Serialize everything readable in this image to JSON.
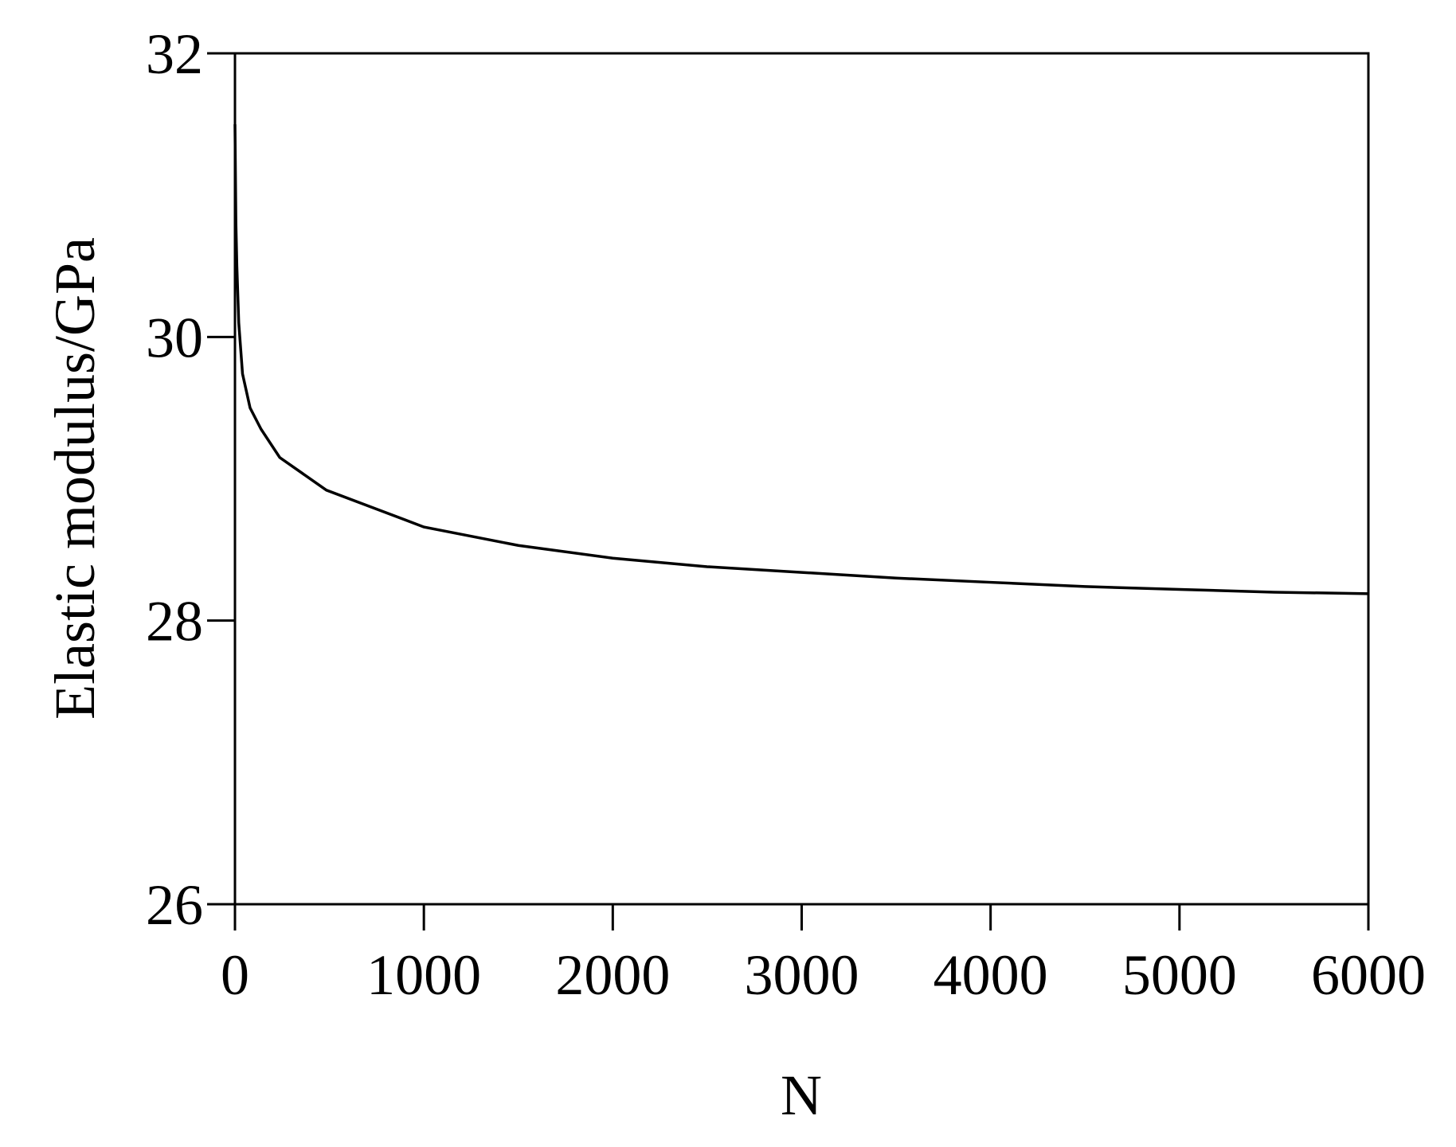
{
  "chart_data": {
    "type": "line",
    "xlabel": "N",
    "ylabel": "Elastic modulus/GPa",
    "x": [
      0,
      5,
      10,
      20,
      40,
      80,
      138,
      237,
      484,
      1000,
      1500,
      2000,
      2500,
      3000,
      3500,
      4000,
      4500,
      5000,
      5500,
      6000
    ],
    "series": [
      {
        "color": "#000000",
        "values": [
          31.5,
          30.8,
          30.5,
          30.1,
          29.74,
          29.5,
          29.35,
          29.15,
          28.92,
          28.66,
          28.53,
          28.44,
          28.38,
          28.34,
          28.3,
          28.27,
          28.24,
          28.22,
          28.2,
          28.19
        ]
      }
    ],
    "xlim": [
      0,
      6000
    ],
    "xticks": [
      0,
      1000,
      2000,
      3000,
      4000,
      5000,
      6000
    ],
    "ylim": [
      26,
      32
    ],
    "yticks": [
      26,
      28,
      30,
      32
    ],
    "grid": false
  }
}
